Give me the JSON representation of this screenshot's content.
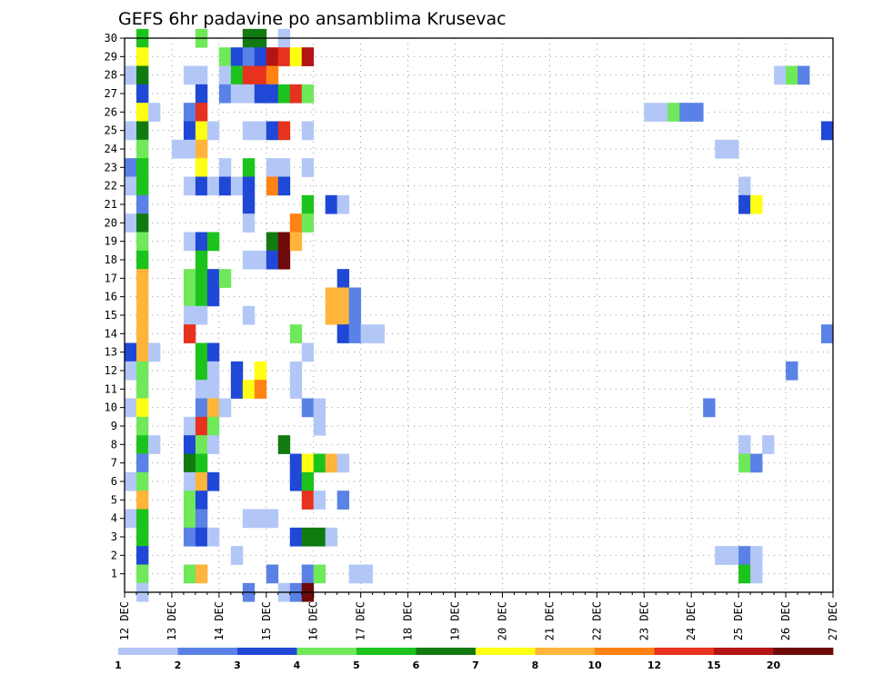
{
  "chart_data": {
    "type": "heatmap",
    "title": "GEFS 6hr padavine po ansamblima Krusevac",
    "xlabel": "",
    "ylabel": "",
    "x_tick_labels": [
      "12 DEC",
      "13 DEC",
      "14 DEC",
      "15 DEC",
      "16 DEC",
      "17 DEC",
      "18 DEC",
      "19 DEC",
      "20 DEC",
      "21 DEC",
      "22 DEC",
      "23 DEC",
      "24 DEC",
      "25 DEC",
      "26 DEC",
      "27 DEC"
    ],
    "y_tick_labels": [
      "1",
      "2",
      "3",
      "4",
      "5",
      "6",
      "7",
      "8",
      "9",
      "10",
      "11",
      "12",
      "13",
      "14",
      "15",
      "16",
      "17",
      "18",
      "19",
      "20",
      "21",
      "22",
      "23",
      "24",
      "25",
      "26",
      "27",
      "28",
      "29",
      "30"
    ],
    "time_step_hours": 6,
    "x_range_steps": [
      0,
      60
    ],
    "y_range": [
      0,
      30
    ],
    "grid": true,
    "legend": "bottom",
    "colorbar": {
      "labels": [
        "1",
        "2",
        "3",
        "4",
        "5",
        "6",
        "7",
        "8",
        "10",
        "12",
        "15",
        "20"
      ],
      "colors": [
        "#b3c7f7",
        "#5a82e6",
        "#1f48d6",
        "#6fe85a",
        "#1cc31c",
        "#117a11",
        "#ffff14",
        "#ffb43c",
        "#ff8214",
        "#e6321e",
        "#b41414",
        "#6e0a0a"
      ]
    },
    "cells": [
      {
        "t": 1,
        "y": 30,
        "c": 4
      },
      {
        "t": 6,
        "y": 30,
        "c": 3
      },
      {
        "t": 10,
        "y": 30,
        "c": 5
      },
      {
        "t": 11,
        "y": 30,
        "c": 5
      },
      {
        "t": 13,
        "y": 30,
        "c": 0
      },
      {
        "t": 1,
        "y": 29,
        "c": 6
      },
      {
        "t": 8,
        "y": 29,
        "c": 3
      },
      {
        "t": 9,
        "y": 29,
        "c": 2
      },
      {
        "t": 10,
        "y": 29,
        "c": 1
      },
      {
        "t": 11,
        "y": 29,
        "c": 2
      },
      {
        "t": 12,
        "y": 29,
        "c": 10
      },
      {
        "t": 13,
        "y": 29,
        "c": 9
      },
      {
        "t": 14,
        "y": 29,
        "c": 6
      },
      {
        "t": 15,
        "y": 29,
        "c": 10
      },
      {
        "t": 0,
        "y": 28,
        "c": 0
      },
      {
        "t": 1,
        "y": 28,
        "c": 5
      },
      {
        "t": 5,
        "y": 28,
        "c": 0
      },
      {
        "t": 6,
        "y": 28,
        "c": 0
      },
      {
        "t": 8,
        "y": 28,
        "c": 0
      },
      {
        "t": 9,
        "y": 28,
        "c": 4
      },
      {
        "t": 10,
        "y": 28,
        "c": 9
      },
      {
        "t": 11,
        "y": 28,
        "c": 9
      },
      {
        "t": 12,
        "y": 28,
        "c": 8
      },
      {
        "t": 55,
        "y": 28,
        "c": 0
      },
      {
        "t": 56,
        "y": 28,
        "c": 3
      },
      {
        "t": 57,
        "y": 28,
        "c": 1
      },
      {
        "t": 1,
        "y": 27,
        "c": 2
      },
      {
        "t": 6,
        "y": 27,
        "c": 2
      },
      {
        "t": 8,
        "y": 27,
        "c": 1
      },
      {
        "t": 9,
        "y": 27,
        "c": 0
      },
      {
        "t": 10,
        "y": 27,
        "c": 0
      },
      {
        "t": 11,
        "y": 27,
        "c": 2
      },
      {
        "t": 12,
        "y": 27,
        "c": 2
      },
      {
        "t": 13,
        "y": 27,
        "c": 4
      },
      {
        "t": 14,
        "y": 27,
        "c": 9
      },
      {
        "t": 15,
        "y": 27,
        "c": 3
      },
      {
        "t": 1,
        "y": 26,
        "c": 6
      },
      {
        "t": 2,
        "y": 26,
        "c": 0
      },
      {
        "t": 5,
        "y": 26,
        "c": 1
      },
      {
        "t": 6,
        "y": 26,
        "c": 9
      },
      {
        "t": 44,
        "y": 26,
        "c": 0
      },
      {
        "t": 45,
        "y": 26,
        "c": 0
      },
      {
        "t": 46,
        "y": 26,
        "c": 3
      },
      {
        "t": 47,
        "y": 26,
        "c": 1
      },
      {
        "t": 48,
        "y": 26,
        "c": 1
      },
      {
        "t": 0,
        "y": 25,
        "c": 0
      },
      {
        "t": 1,
        "y": 25,
        "c": 5
      },
      {
        "t": 5,
        "y": 25,
        "c": 2
      },
      {
        "t": 6,
        "y": 25,
        "c": 6
      },
      {
        "t": 7,
        "y": 25,
        "c": 0
      },
      {
        "t": 10,
        "y": 25,
        "c": 0
      },
      {
        "t": 11,
        "y": 25,
        "c": 0
      },
      {
        "t": 12,
        "y": 25,
        "c": 2
      },
      {
        "t": 13,
        "y": 25,
        "c": 9
      },
      {
        "t": 15,
        "y": 25,
        "c": 0
      },
      {
        "t": 59,
        "y": 25,
        "c": 2
      },
      {
        "t": 1,
        "y": 24,
        "c": 3
      },
      {
        "t": 4,
        "y": 24,
        "c": 0
      },
      {
        "t": 5,
        "y": 24,
        "c": 0
      },
      {
        "t": 6,
        "y": 24,
        "c": 7
      },
      {
        "t": 50,
        "y": 24,
        "c": 0
      },
      {
        "t": 51,
        "y": 24,
        "c": 0
      },
      {
        "t": 0,
        "y": 23,
        "c": 1
      },
      {
        "t": 1,
        "y": 23,
        "c": 4
      },
      {
        "t": 6,
        "y": 23,
        "c": 6
      },
      {
        "t": 8,
        "y": 23,
        "c": 0
      },
      {
        "t": 10,
        "y": 23,
        "c": 4
      },
      {
        "t": 12,
        "y": 23,
        "c": 0
      },
      {
        "t": 13,
        "y": 23,
        "c": 0
      },
      {
        "t": 15,
        "y": 23,
        "c": 0
      },
      {
        "t": 0,
        "y": 22,
        "c": 0
      },
      {
        "t": 1,
        "y": 22,
        "c": 4
      },
      {
        "t": 5,
        "y": 22,
        "c": 0
      },
      {
        "t": 6,
        "y": 22,
        "c": 2
      },
      {
        "t": 7,
        "y": 22,
        "c": 0
      },
      {
        "t": 8,
        "y": 22,
        "c": 2
      },
      {
        "t": 9,
        "y": 22,
        "c": 0
      },
      {
        "t": 10,
        "y": 22,
        "c": 2
      },
      {
        "t": 12,
        "y": 22,
        "c": 8
      },
      {
        "t": 13,
        "y": 22,
        "c": 2
      },
      {
        "t": 52,
        "y": 22,
        "c": 0
      },
      {
        "t": 1,
        "y": 21,
        "c": 1
      },
      {
        "t": 10,
        "y": 21,
        "c": 2
      },
      {
        "t": 15,
        "y": 21,
        "c": 4
      },
      {
        "t": 17,
        "y": 21,
        "c": 2
      },
      {
        "t": 18,
        "y": 21,
        "c": 0
      },
      {
        "t": 52,
        "y": 21,
        "c": 2
      },
      {
        "t": 53,
        "y": 21,
        "c": 6
      },
      {
        "t": 0,
        "y": 20,
        "c": 0
      },
      {
        "t": 1,
        "y": 20,
        "c": 5
      },
      {
        "t": 10,
        "y": 20,
        "c": 0
      },
      {
        "t": 14,
        "y": 20,
        "c": 8
      },
      {
        "t": 15,
        "y": 20,
        "c": 3
      },
      {
        "t": 1,
        "y": 19,
        "c": 3
      },
      {
        "t": 5,
        "y": 19,
        "c": 0
      },
      {
        "t": 6,
        "y": 19,
        "c": 2
      },
      {
        "t": 7,
        "y": 19,
        "c": 4
      },
      {
        "t": 12,
        "y": 19,
        "c": 5
      },
      {
        "t": 13,
        "y": 19,
        "c": 11
      },
      {
        "t": 14,
        "y": 19,
        "c": 7
      },
      {
        "t": 1,
        "y": 18,
        "c": 4
      },
      {
        "t": 6,
        "y": 18,
        "c": 4
      },
      {
        "t": 10,
        "y": 18,
        "c": 0
      },
      {
        "t": 11,
        "y": 18,
        "c": 0
      },
      {
        "t": 12,
        "y": 18,
        "c": 2
      },
      {
        "t": 13,
        "y": 18,
        "c": 11
      },
      {
        "t": 1,
        "y": 17,
        "c": 7
      },
      {
        "t": 5,
        "y": 17,
        "c": 3
      },
      {
        "t": 6,
        "y": 17,
        "c": 4
      },
      {
        "t": 7,
        "y": 17,
        "c": 2
      },
      {
        "t": 8,
        "y": 17,
        "c": 3
      },
      {
        "t": 18,
        "y": 17,
        "c": 2
      },
      {
        "t": 1,
        "y": 16,
        "c": 7
      },
      {
        "t": 5,
        "y": 16,
        "c": 3
      },
      {
        "t": 6,
        "y": 16,
        "c": 4
      },
      {
        "t": 7,
        "y": 16,
        "c": 2
      },
      {
        "t": 17,
        "y": 16,
        "c": 7
      },
      {
        "t": 18,
        "y": 16,
        "c": 7
      },
      {
        "t": 19,
        "y": 16,
        "c": 1
      },
      {
        "t": 1,
        "y": 15,
        "c": 7
      },
      {
        "t": 5,
        "y": 15,
        "c": 0
      },
      {
        "t": 6,
        "y": 15,
        "c": 0
      },
      {
        "t": 10,
        "y": 15,
        "c": 0
      },
      {
        "t": 17,
        "y": 15,
        "c": 7
      },
      {
        "t": 18,
        "y": 15,
        "c": 7
      },
      {
        "t": 19,
        "y": 15,
        "c": 1
      },
      {
        "t": 1,
        "y": 14,
        "c": 7
      },
      {
        "t": 5,
        "y": 14,
        "c": 9
      },
      {
        "t": 14,
        "y": 14,
        "c": 3
      },
      {
        "t": 18,
        "y": 14,
        "c": 2
      },
      {
        "t": 19,
        "y": 14,
        "c": 1
      },
      {
        "t": 20,
        "y": 14,
        "c": 0
      },
      {
        "t": 21,
        "y": 14,
        "c": 0
      },
      {
        "t": 59,
        "y": 14,
        "c": 1
      },
      {
        "t": 0,
        "y": 13,
        "c": 2
      },
      {
        "t": 1,
        "y": 13,
        "c": 7
      },
      {
        "t": 2,
        "y": 13,
        "c": 0
      },
      {
        "t": 6,
        "y": 13,
        "c": 4
      },
      {
        "t": 7,
        "y": 13,
        "c": 2
      },
      {
        "t": 15,
        "y": 13,
        "c": 0
      },
      {
        "t": 0,
        "y": 12,
        "c": 0
      },
      {
        "t": 1,
        "y": 12,
        "c": 3
      },
      {
        "t": 6,
        "y": 12,
        "c": 4
      },
      {
        "t": 7,
        "y": 12,
        "c": 0
      },
      {
        "t": 9,
        "y": 12,
        "c": 2
      },
      {
        "t": 11,
        "y": 12,
        "c": 6
      },
      {
        "t": 14,
        "y": 12,
        "c": 0
      },
      {
        "t": 56,
        "y": 12,
        "c": 1
      },
      {
        "t": 1,
        "y": 11,
        "c": 3
      },
      {
        "t": 6,
        "y": 11,
        "c": 0
      },
      {
        "t": 7,
        "y": 11,
        "c": 0
      },
      {
        "t": 9,
        "y": 11,
        "c": 2
      },
      {
        "t": 10,
        "y": 11,
        "c": 6
      },
      {
        "t": 11,
        "y": 11,
        "c": 8
      },
      {
        "t": 14,
        "y": 11,
        "c": 0
      },
      {
        "t": 0,
        "y": 10,
        "c": 0
      },
      {
        "t": 1,
        "y": 10,
        "c": 6
      },
      {
        "t": 6,
        "y": 10,
        "c": 1
      },
      {
        "t": 7,
        "y": 10,
        "c": 7
      },
      {
        "t": 8,
        "y": 10,
        "c": 0
      },
      {
        "t": 15,
        "y": 10,
        "c": 1
      },
      {
        "t": 16,
        "y": 10,
        "c": 0
      },
      {
        "t": 49,
        "y": 10,
        "c": 1
      },
      {
        "t": 1,
        "y": 9,
        "c": 3
      },
      {
        "t": 5,
        "y": 9,
        "c": 0
      },
      {
        "t": 6,
        "y": 9,
        "c": 9
      },
      {
        "t": 7,
        "y": 9,
        "c": 3
      },
      {
        "t": 16,
        "y": 9,
        "c": 0
      },
      {
        "t": 1,
        "y": 8,
        "c": 4
      },
      {
        "t": 2,
        "y": 8,
        "c": 0
      },
      {
        "t": 5,
        "y": 8,
        "c": 2
      },
      {
        "t": 6,
        "y": 8,
        "c": 3
      },
      {
        "t": 7,
        "y": 8,
        "c": 0
      },
      {
        "t": 13,
        "y": 8,
        "c": 5
      },
      {
        "t": 52,
        "y": 8,
        "c": 0
      },
      {
        "t": 54,
        "y": 8,
        "c": 0
      },
      {
        "t": 1,
        "y": 7,
        "c": 1
      },
      {
        "t": 5,
        "y": 7,
        "c": 5
      },
      {
        "t": 6,
        "y": 7,
        "c": 4
      },
      {
        "t": 14,
        "y": 7,
        "c": 2
      },
      {
        "t": 15,
        "y": 7,
        "c": 6
      },
      {
        "t": 16,
        "y": 7,
        "c": 4
      },
      {
        "t": 17,
        "y": 7,
        "c": 7
      },
      {
        "t": 18,
        "y": 7,
        "c": 0
      },
      {
        "t": 52,
        "y": 7,
        "c": 3
      },
      {
        "t": 53,
        "y": 7,
        "c": 1
      },
      {
        "t": 0,
        "y": 6,
        "c": 0
      },
      {
        "t": 1,
        "y": 6,
        "c": 3
      },
      {
        "t": 5,
        "y": 6,
        "c": 0
      },
      {
        "t": 6,
        "y": 6,
        "c": 7
      },
      {
        "t": 7,
        "y": 6,
        "c": 2
      },
      {
        "t": 14,
        "y": 6,
        "c": 2
      },
      {
        "t": 15,
        "y": 6,
        "c": 4
      },
      {
        "t": 1,
        "y": 5,
        "c": 7
      },
      {
        "t": 5,
        "y": 5,
        "c": 3
      },
      {
        "t": 6,
        "y": 5,
        "c": 2
      },
      {
        "t": 15,
        "y": 5,
        "c": 9
      },
      {
        "t": 16,
        "y": 5,
        "c": 0
      },
      {
        "t": 18,
        "y": 5,
        "c": 1
      },
      {
        "t": 0,
        "y": 4,
        "c": 0
      },
      {
        "t": 1,
        "y": 4,
        "c": 4
      },
      {
        "t": 5,
        "y": 4,
        "c": 3
      },
      {
        "t": 6,
        "y": 4,
        "c": 1
      },
      {
        "t": 10,
        "y": 4,
        "c": 0
      },
      {
        "t": 11,
        "y": 4,
        "c": 0
      },
      {
        "t": 12,
        "y": 4,
        "c": 0
      },
      {
        "t": 1,
        "y": 3,
        "c": 4
      },
      {
        "t": 5,
        "y": 3,
        "c": 1
      },
      {
        "t": 6,
        "y": 3,
        "c": 2
      },
      {
        "t": 7,
        "y": 3,
        "c": 0
      },
      {
        "t": 14,
        "y": 3,
        "c": 2
      },
      {
        "t": 15,
        "y": 3,
        "c": 5
      },
      {
        "t": 16,
        "y": 3,
        "c": 5
      },
      {
        "t": 17,
        "y": 3,
        "c": 0
      },
      {
        "t": 1,
        "y": 2,
        "c": 2
      },
      {
        "t": 9,
        "y": 2,
        "c": 0
      },
      {
        "t": 50,
        "y": 2,
        "c": 0
      },
      {
        "t": 51,
        "y": 2,
        "c": 0
      },
      {
        "t": 52,
        "y": 2,
        "c": 1
      },
      {
        "t": 53,
        "y": 2,
        "c": 0
      },
      {
        "t": 1,
        "y": 1,
        "c": 3
      },
      {
        "t": 5,
        "y": 1,
        "c": 3
      },
      {
        "t": 6,
        "y": 1,
        "c": 7
      },
      {
        "t": 12,
        "y": 1,
        "c": 1
      },
      {
        "t": 15,
        "y": 1,
        "c": 1
      },
      {
        "t": 16,
        "y": 1,
        "c": 3
      },
      {
        "t": 19,
        "y": 1,
        "c": 0
      },
      {
        "t": 20,
        "y": 1,
        "c": 0
      },
      {
        "t": 52,
        "y": 1,
        "c": 4
      },
      {
        "t": 53,
        "y": 1,
        "c": 0
      },
      {
        "t": 1,
        "y": 0,
        "c": 0
      },
      {
        "t": 10,
        "y": 0,
        "c": 1
      },
      {
        "t": 13,
        "y": 0,
        "c": 0
      },
      {
        "t": 14,
        "y": 0,
        "c": 1
      },
      {
        "t": 15,
        "y": 0,
        "c": 11
      }
    ]
  }
}
